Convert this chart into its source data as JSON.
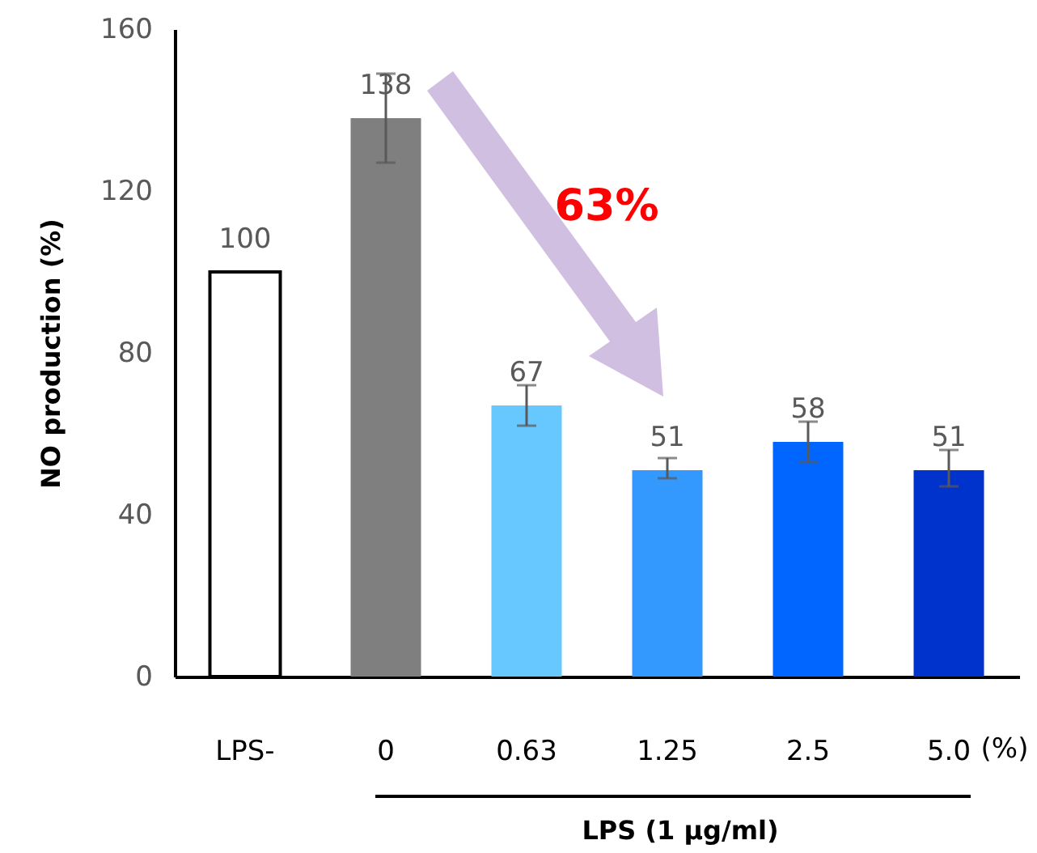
{
  "chart_data": {
    "type": "bar",
    "categories": [
      "LPS-",
      "0",
      "0.63",
      "1.25",
      "2.5",
      "5.0"
    ],
    "values": [
      100,
      138,
      67,
      51,
      58,
      51
    ],
    "colors": [
      "#ffffff",
      "#7f7f7f",
      "#66c8ff",
      "#3399ff",
      "#0066ff",
      "#0033cc"
    ],
    "errors": [
      null,
      [
        127,
        149
      ],
      [
        62,
        72
      ],
      [
        49,
        54
      ],
      [
        53,
        63
      ],
      [
        47,
        56
      ]
    ],
    "data_labels": true,
    "ylim": [
      0,
      160
    ],
    "yticks": [
      0,
      40,
      80,
      120,
      160
    ],
    "ylabel": "NO production (%)",
    "xlabel": "LPS (1 μg/ml)",
    "annotations": [
      "63%",
      "(%)"
    ],
    "grid": false
  }
}
